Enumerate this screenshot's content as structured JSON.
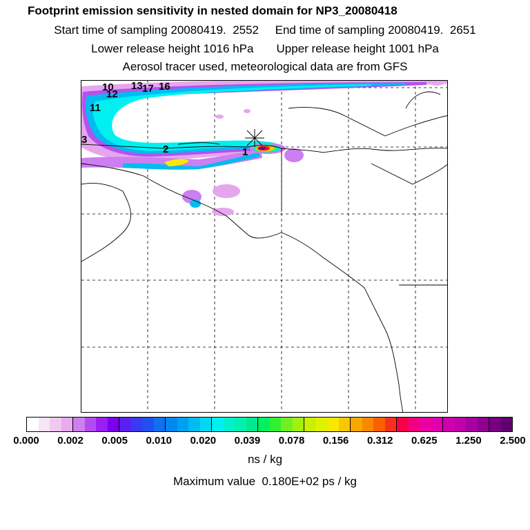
{
  "title": {
    "line1": "Footprint emission sensitivity in nested domain for NP3_20080418",
    "line2": "Start time of sampling 20080419.  2552     End time of sampling 20080419.  2651",
    "line3": "Lower release height 1016 hPa       Upper release height 1001 hPa",
    "line4": "Aerosol tracer used, meteorological data are from GFS"
  },
  "map": {
    "release_marker_icon": "asterisk-icon",
    "track_labels": [
      "10",
      "13",
      "17",
      "16",
      "12",
      "11",
      "3",
      "2",
      "1"
    ]
  },
  "colorbar": {
    "colors": [
      "#ffffff",
      "#f7e4f7",
      "#f0c8f0",
      "#e8aaf0",
      "#cc7ff0",
      "#b24cf0",
      "#9a1ff0",
      "#7a00f0",
      "#5a20f0",
      "#3a3af0",
      "#2050f0",
      "#1070f0",
      "#0088f0",
      "#00a0f0",
      "#00bcf0",
      "#00d8f0",
      "#00f0f0",
      "#00f0d0",
      "#00f0b0",
      "#00e890",
      "#00f060",
      "#30f030",
      "#70f020",
      "#a0f010",
      "#c8f000",
      "#e0f000",
      "#f8e800",
      "#f8c800",
      "#f8a800",
      "#f88800",
      "#f86000",
      "#f83020",
      "#f80048",
      "#f00080",
      "#e800a0",
      "#e000b0",
      "#d000b0",
      "#c000a8",
      "#a800a0",
      "#900090",
      "#780080",
      "#600070"
    ],
    "tick_labels": [
      "0.000",
      "0.002",
      "0.005",
      "0.010",
      "0.020",
      "0.039",
      "0.078",
      "0.156",
      "0.312",
      "0.625",
      "1.250",
      "2.500"
    ],
    "unit": "ns / kg"
  },
  "footer": {
    "max_value": "Maximum value  0.180E+02 ps / kg"
  }
}
